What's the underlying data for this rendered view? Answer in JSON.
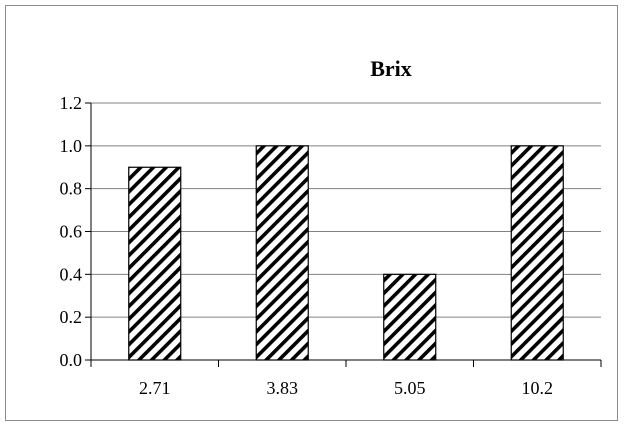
{
  "chart_data": {
    "type": "bar",
    "title": "Brix",
    "xlabel": "",
    "ylabel": "",
    "categories": [
      "2.71",
      "3.83",
      "5.05",
      "10.2"
    ],
    "values": [
      0.9,
      1.0,
      0.4,
      1.0
    ],
    "ylim": [
      0,
      1.2
    ],
    "ytick_labels": [
      "0.0",
      "0.2",
      "0.4",
      "0.6",
      "0.8",
      "1.0",
      "1.2"
    ],
    "grid": true,
    "legend": "none",
    "bar_fill": "diagonal-hatch",
    "colors": {
      "bar_fill": "#ffffff",
      "bar_hatch": "#000000",
      "grid": "#808080",
      "axis": "#000000"
    }
  }
}
